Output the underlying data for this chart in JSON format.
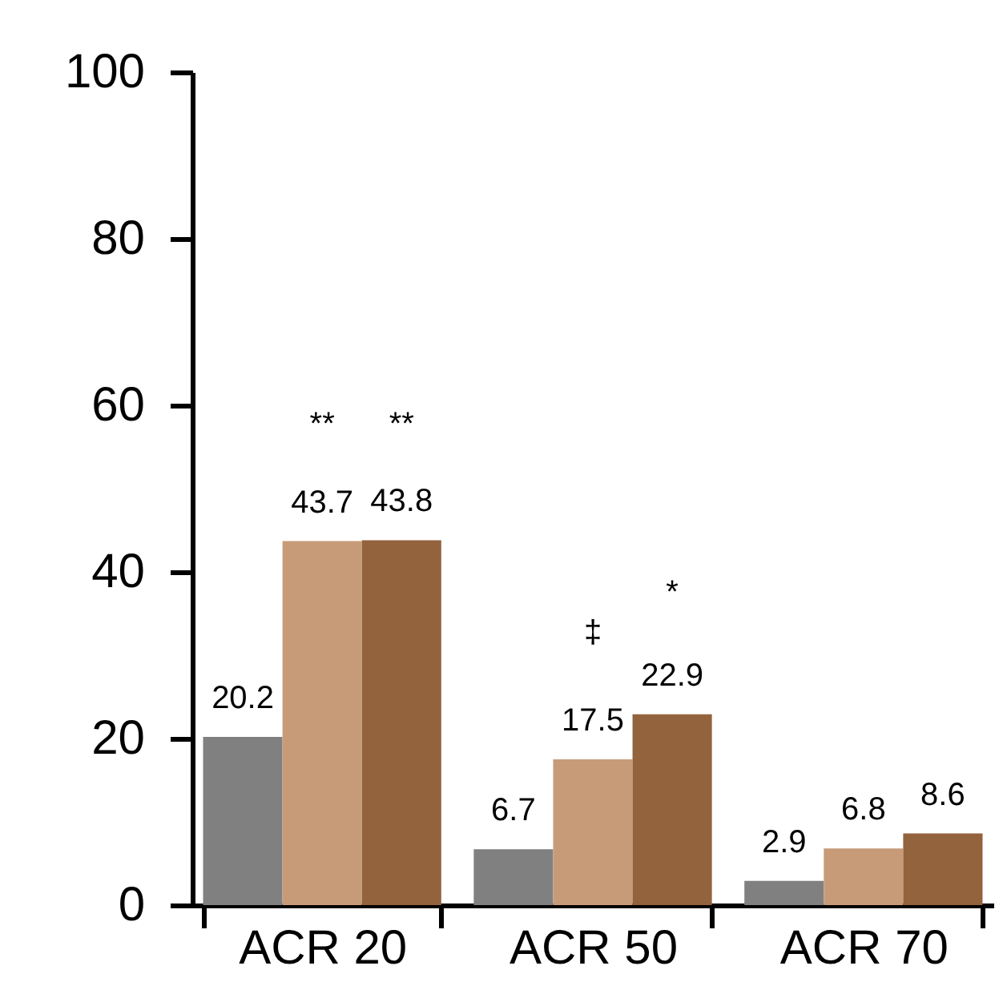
{
  "chart_data": {
    "type": "bar",
    "categories": [
      "ACR 20",
      "ACR 50",
      "ACR 70"
    ],
    "series": [
      {
        "color": "#808080",
        "values": [
          20.2,
          6.7,
          2.9
        ]
      },
      {
        "color": "#c89b78",
        "values": [
          43.7,
          17.5,
          6.8
        ]
      },
      {
        "color": "#93633d",
        "values": [
          43.8,
          22.9,
          8.6
        ]
      }
    ],
    "ylim": [
      0,
      100
    ],
    "yticks": [
      0,
      20,
      40,
      60,
      80,
      100
    ],
    "grid": false,
    "data_labels": true,
    "annotations": [
      "**",
      "**",
      "‡",
      "*"
    ]
  }
}
